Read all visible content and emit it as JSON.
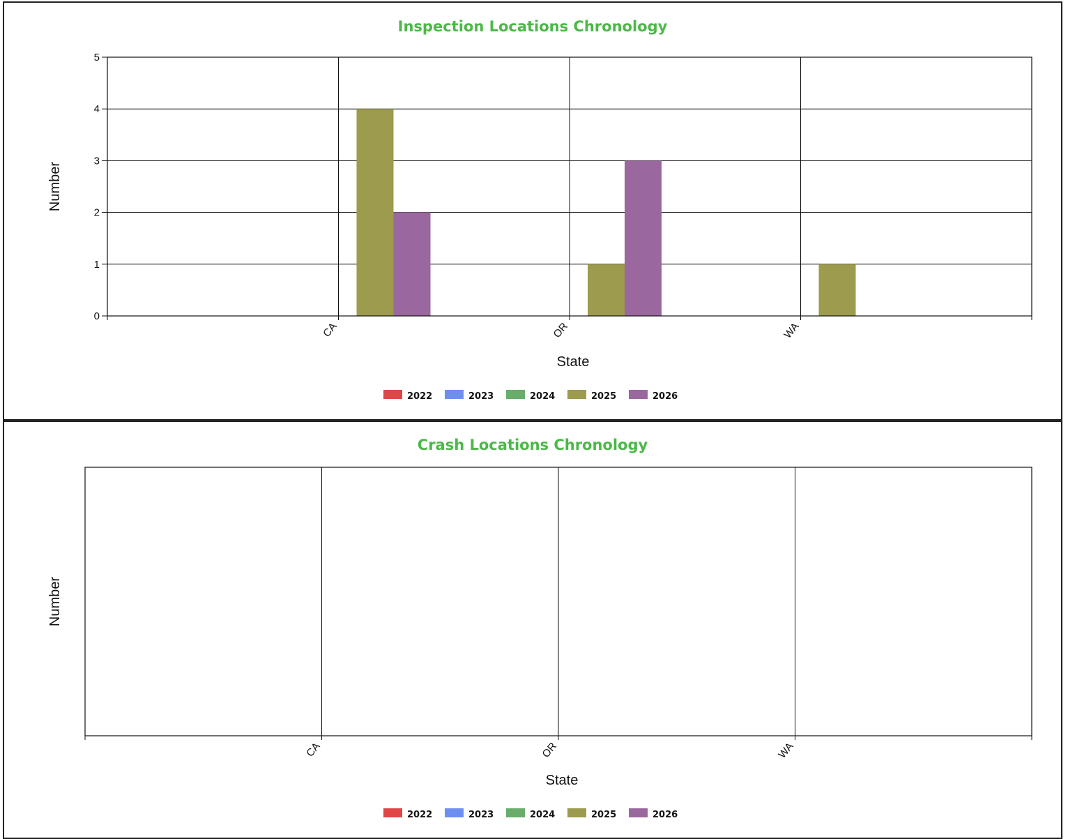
{
  "charts": [
    {
      "id": "inspection",
      "chart_data": {
        "type": "bar",
        "title": "Inspection Locations Chronology",
        "xlabel": "State",
        "ylabel": "Number",
        "categories": [
          "CA",
          "OR",
          "WA"
        ],
        "series": [
          {
            "name": "2022",
            "color": "#e04646",
            "values": [
              0,
              0,
              0
            ]
          },
          {
            "name": "2023",
            "color": "#6f8ff0",
            "values": [
              0,
              0,
              0
            ]
          },
          {
            "name": "2024",
            "color": "#68ad6a",
            "values": [
              0,
              0,
              0
            ]
          },
          {
            "name": "2025",
            "color": "#9d9b4d",
            "values": [
              4,
              1,
              1
            ]
          },
          {
            "name": "2026",
            "color": "#9b679f",
            "values": [
              2,
              3,
              0
            ]
          }
        ],
        "ylim": [
          0,
          5
        ],
        "yticks": [
          0,
          1,
          2,
          3,
          4,
          5
        ],
        "grid": true,
        "legend_position": "bottom-center"
      }
    },
    {
      "id": "crash",
      "chart_data": {
        "type": "bar",
        "title": "Crash Locations Chronology",
        "xlabel": "State",
        "ylabel": "Number",
        "categories": [
          "CA",
          "OR",
          "WA"
        ],
        "series": [
          {
            "name": "2022",
            "color": "#e04646",
            "values": [
              0,
              0,
              0
            ]
          },
          {
            "name": "2023",
            "color": "#6f8ff0",
            "values": [
              0,
              0,
              0
            ]
          },
          {
            "name": "2024",
            "color": "#68ad6a",
            "values": [
              0,
              0,
              0
            ]
          },
          {
            "name": "2025",
            "color": "#9d9b4d",
            "values": [
              0,
              0,
              0
            ]
          },
          {
            "name": "2026",
            "color": "#9b679f",
            "values": [
              0,
              0,
              0
            ]
          }
        ],
        "yticks": [],
        "grid": true,
        "legend_position": "bottom-center"
      }
    }
  ]
}
